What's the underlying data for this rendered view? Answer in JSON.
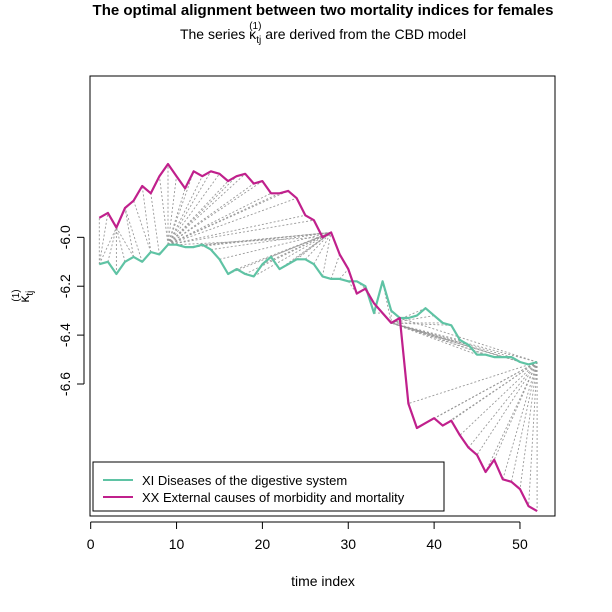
{
  "chart_data": {
    "type": "line",
    "title": "The optimal alignment between two mortality indices for females",
    "subtitle_prefix": "The series κ",
    "subtitle_sub": "tj",
    "subtitle_sup": "(1)",
    "subtitle_suffix": " are derived from the CBD model",
    "xlabel": "time index",
    "ylabel_symbol": "κ",
    "ylabel_sub": "tj",
    "ylabel_sup": "(1)",
    "xlim": [
      -0.08,
      54.08
    ],
    "ylim": [
      -7.14,
      -5.34
    ],
    "x_ticks": [
      0,
      10,
      20,
      30,
      40,
      50
    ],
    "y_ticks": [
      -6.6,
      -6.4,
      -6.2,
      -6.0
    ],
    "x_tick_labels": [
      "0",
      "10",
      "20",
      "30",
      "40",
      "50"
    ],
    "y_tick_labels": [
      "-6.6",
      "-6.4",
      "-6.2",
      "-6.0"
    ],
    "legend_position": "bottom-left",
    "alignment_line_color": "#999999",
    "series": [
      {
        "name": "XI Diseases of the digestive system",
        "color": "#5fc3a4",
        "x": [
          1,
          2,
          3,
          4,
          5,
          6,
          7,
          8,
          9,
          10,
          11,
          12,
          13,
          14,
          15,
          16,
          17,
          18,
          19,
          20,
          21,
          22,
          23,
          24,
          25,
          26,
          27,
          28,
          29,
          30,
          31,
          32,
          33,
          34,
          35,
          36,
          37,
          38,
          39,
          40,
          41,
          42,
          43,
          44,
          45,
          46,
          47,
          48,
          49,
          50,
          51,
          52
        ],
        "y": [
          -6.11,
          -6.1,
          -6.15,
          -6.1,
          -6.08,
          -6.1,
          -6.06,
          -6.07,
          -6.03,
          -6.03,
          -6.04,
          -6.04,
          -6.03,
          -6.05,
          -6.09,
          -6.15,
          -6.13,
          -6.15,
          -6.16,
          -6.11,
          -6.08,
          -6.13,
          -6.11,
          -6.09,
          -6.09,
          -6.11,
          -6.16,
          -6.17,
          -6.17,
          -6.18,
          -6.18,
          -6.2,
          -6.31,
          -6.18,
          -6.3,
          -6.33,
          -6.33,
          -6.32,
          -6.29,
          -6.32,
          -6.35,
          -6.36,
          -6.42,
          -6.44,
          -6.48,
          -6.48,
          -6.49,
          -6.49,
          -6.49,
          -6.51,
          -6.52,
          -6.51
        ]
      },
      {
        "name": "XX External causes of morbidity and mortality",
        "color": "#c0208c",
        "x": [
          1,
          2,
          3,
          4,
          5,
          6,
          7,
          8,
          9,
          10,
          11,
          12,
          13,
          14,
          15,
          16,
          17,
          18,
          19,
          20,
          21,
          22,
          23,
          24,
          25,
          26,
          27,
          28,
          29,
          30,
          31,
          32,
          33,
          34,
          35,
          36,
          37,
          38,
          39,
          40,
          41,
          42,
          43,
          44,
          45,
          46,
          47,
          48,
          49,
          50,
          51,
          52
        ],
        "y": [
          -5.92,
          -5.9,
          -5.96,
          -5.88,
          -5.85,
          -5.79,
          -5.82,
          -5.75,
          -5.7,
          -5.75,
          -5.8,
          -5.73,
          -5.75,
          -5.73,
          -5.74,
          -5.77,
          -5.75,
          -5.74,
          -5.78,
          -5.77,
          -5.82,
          -5.82,
          -5.81,
          -5.84,
          -5.91,
          -5.93,
          -6.0,
          -5.98,
          -6.07,
          -6.13,
          -6.23,
          -6.21,
          -6.27,
          -6.31,
          -6.35,
          -6.33,
          -6.68,
          -6.78,
          -6.76,
          -6.74,
          -6.77,
          -6.75,
          -6.81,
          -6.86,
          -6.89,
          -6.96,
          -6.91,
          -6.99,
          -7.0,
          -7.03,
          -7.1,
          -7.12
        ]
      }
    ],
    "alignment": [
      [
        1,
        1
      ],
      [
        1,
        2
      ],
      [
        1,
        3
      ],
      [
        2,
        3
      ],
      [
        3,
        3
      ],
      [
        4,
        3
      ],
      [
        5,
        3
      ],
      [
        5,
        4
      ],
      [
        6,
        4
      ],
      [
        7,
        5
      ],
      [
        7,
        6
      ],
      [
        8,
        7
      ],
      [
        9,
        8
      ],
      [
        9,
        9
      ],
      [
        9,
        10
      ],
      [
        9,
        11
      ],
      [
        9,
        12
      ],
      [
        9,
        13
      ],
      [
        9,
        14
      ],
      [
        9,
        15
      ],
      [
        9,
        16
      ],
      [
        9,
        17
      ],
      [
        9,
        18
      ],
      [
        9,
        19
      ],
      [
        9,
        20
      ],
      [
        9,
        21
      ],
      [
        9,
        22
      ],
      [
        9,
        23
      ],
      [
        9,
        24
      ],
      [
        9,
        25
      ],
      [
        9,
        26
      ],
      [
        10,
        27
      ],
      [
        11,
        28
      ],
      [
        12,
        28
      ],
      [
        13,
        28
      ],
      [
        14,
        28
      ],
      [
        15,
        28
      ],
      [
        16,
        28
      ],
      [
        17,
        28
      ],
      [
        18,
        28
      ],
      [
        19,
        28
      ],
      [
        20,
        28
      ],
      [
        21,
        28
      ],
      [
        22,
        28
      ],
      [
        23,
        28
      ],
      [
        24,
        28
      ],
      [
        25,
        28
      ],
      [
        26,
        28
      ],
      [
        27,
        28
      ],
      [
        28,
        29
      ],
      [
        29,
        30
      ],
      [
        30,
        31
      ],
      [
        31,
        32
      ],
      [
        32,
        33
      ],
      [
        33,
        34
      ],
      [
        34,
        35
      ],
      [
        35,
        35
      ],
      [
        36,
        35
      ],
      [
        37,
        35
      ],
      [
        38,
        35
      ],
      [
        39,
        35
      ],
      [
        40,
        35
      ],
      [
        41,
        35
      ],
      [
        42,
        35
      ],
      [
        43,
        35
      ],
      [
        44,
        35
      ],
      [
        45,
        35
      ],
      [
        46,
        35
      ],
      [
        47,
        35
      ],
      [
        48,
        35
      ],
      [
        49,
        35
      ],
      [
        50,
        35
      ],
      [
        51,
        35
      ],
      [
        52,
        35
      ],
      [
        52,
        36
      ],
      [
        52,
        37
      ],
      [
        52,
        38
      ],
      [
        52,
        39
      ],
      [
        52,
        40
      ],
      [
        52,
        41
      ],
      [
        52,
        42
      ],
      [
        52,
        43
      ],
      [
        52,
        44
      ],
      [
        52,
        45
      ],
      [
        52,
        46
      ],
      [
        52,
        47
      ],
      [
        52,
        48
      ],
      [
        52,
        49
      ],
      [
        52,
        50
      ],
      [
        52,
        51
      ],
      [
        52,
        52
      ]
    ]
  }
}
